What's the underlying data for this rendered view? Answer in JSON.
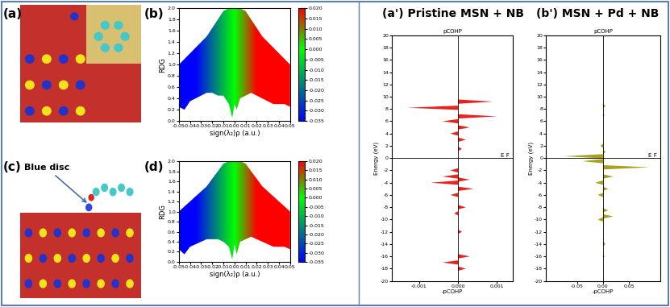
{
  "images": [
    {
      "panel": "(a)"
    },
    {
      "panel": "(c)",
      "annotation": "Blue disc"
    }
  ],
  "chart_data": [
    {
      "panel": "(b)",
      "type": "area",
      "x": [
        -0.05,
        -0.045,
        -0.04,
        -0.035,
        -0.03,
        -0.025,
        -0.02,
        -0.015,
        -0.01,
        -0.005,
        -0.002,
        0.0,
        0.002,
        0.005,
        0.01,
        0.015,
        0.02,
        0.025,
        0.03,
        0.035,
        0.04,
        0.045,
        0.05
      ],
      "upper": [
        1.0,
        1.1,
        1.2,
        1.3,
        1.4,
        1.5,
        1.65,
        1.8,
        1.95,
        2.0,
        2.0,
        2.0,
        2.0,
        2.0,
        1.95,
        1.8,
        1.65,
        1.5,
        1.4,
        1.3,
        1.2,
        1.1,
        1.0
      ],
      "lower": [
        0.25,
        0.2,
        0.35,
        0.4,
        0.45,
        0.5,
        0.5,
        0.45,
        0.45,
        0.3,
        0.05,
        0.3,
        0.2,
        0.4,
        0.45,
        0.5,
        0.45,
        0.4,
        0.35,
        0.3,
        0.3,
        0.3,
        0.25
      ],
      "xlabel": "sign(λ₂)ρ (a.u.)",
      "ylabel": "RDG",
      "xlim": [
        -0.05,
        0.05
      ],
      "ylim": [
        0,
        2.0
      ],
      "xticks": [
        -0.05,
        -0.04,
        -0.03,
        -0.02,
        -0.01,
        {
          "value": 0,
          "label": "0.00"
        },
        0.01,
        0.02,
        0.03,
        0.04,
        0.05
      ],
      "yticks": [
        {
          "value": 0,
          "label": "0.0"
        },
        0.2,
        0.4,
        0.6,
        0.8,
        {
          "value": 1,
          "label": "1.0"
        },
        1.2,
        1.4,
        1.6,
        1.8,
        {
          "value": 2,
          "label": "2.0"
        }
      ],
      "colorbar": {
        "lim": [
          -0.035,
          0.02
        ],
        "color_stops": [
          -0.035,
          0.0,
          0.02
        ],
        "colors": [
          "#0000ff",
          "#00ff00",
          "#ff0000"
        ],
        "ticks": [
          {
            "value": 0.02,
            "label": "0.020"
          },
          0.015,
          {
            "value": 0.01,
            "label": "0.010"
          },
          0.005,
          {
            "value": 0,
            "label": "0.000"
          },
          -0.005,
          {
            "value": -0.01,
            "label": "-0.010"
          },
          -0.015,
          {
            "value": -0.02,
            "label": "-0.020"
          },
          -0.025,
          {
            "value": -0.03,
            "label": "-0.030"
          },
          -0.035
        ]
      }
    },
    {
      "panel": "(d)",
      "type": "area",
      "x": [
        -0.05,
        -0.045,
        -0.04,
        -0.035,
        -0.03,
        -0.025,
        -0.02,
        -0.015,
        -0.01,
        -0.005,
        -0.002,
        0.0,
        0.002,
        0.005,
        0.01,
        0.015,
        0.02,
        0.025,
        0.03,
        0.035,
        0.04,
        0.045,
        0.05
      ],
      "upper": [
        1.0,
        1.1,
        1.2,
        1.3,
        1.4,
        1.5,
        1.65,
        1.8,
        1.95,
        2.0,
        2.0,
        2.0,
        2.0,
        2.0,
        1.95,
        1.8,
        1.65,
        1.5,
        1.4,
        1.3,
        1.2,
        1.1,
        1.0
      ],
      "lower": [
        0.25,
        0.15,
        0.3,
        0.35,
        0.4,
        0.45,
        0.45,
        0.45,
        0.4,
        0.3,
        0.05,
        0.35,
        0.15,
        0.4,
        0.45,
        0.5,
        0.45,
        0.4,
        0.35,
        0.3,
        0.3,
        0.3,
        0.25
      ],
      "xlabel": "sign(λ₂)ρ (a.u.)",
      "ylabel": "RDG",
      "xlim": [
        -0.05,
        0.05
      ],
      "ylim": [
        0,
        2.0
      ],
      "xticks": [
        -0.05,
        -0.04,
        -0.03,
        -0.02,
        -0.01,
        {
          "value": 0,
          "label": "0.00"
        },
        0.01,
        0.02,
        0.03,
        0.04,
        0.05
      ],
      "yticks": [
        {
          "value": 0,
          "label": "0.0"
        },
        0.2,
        0.4,
        0.6,
        0.8,
        {
          "value": 1,
          "label": "1.0"
        },
        1.2,
        1.4,
        1.6,
        1.8,
        {
          "value": 2,
          "label": "2.0"
        }
      ],
      "colorbar": {
        "lim": [
          -0.035,
          0.02
        ],
        "color_stops": [
          -0.035,
          0.0,
          0.02
        ],
        "colors": [
          "#0000ff",
          "#00ff00",
          "#ff0000"
        ],
        "ticks": [
          {
            "value": 0.02,
            "label": "0.020"
          },
          0.015,
          {
            "value": 0.01,
            "label": "0.010"
          },
          0.005,
          {
            "value": 0,
            "label": "0.000"
          },
          -0.005,
          {
            "value": -0.01,
            "label": "-0.010"
          },
          -0.015,
          {
            "value": -0.02,
            "label": "-0.020"
          },
          -0.025,
          {
            "value": -0.03,
            "label": "-0.030"
          },
          -0.035
        ]
      }
    },
    {
      "panel": "(a')",
      "type": "bar",
      "orientation": "horizontal",
      "heading": "Pristine MSN + NB",
      "title": "pCOHP",
      "xlabel": "-pCOHP",
      "ylabel": "Energy (eV)",
      "reference_label": "E_F",
      "reference_value": 0,
      "x_reference": 0,
      "color": "#e8231e",
      "y": [
        9.2,
        8.2,
        6.8,
        6.0,
        5.0,
        4.0,
        3.0,
        1.5,
        -2.0,
        -3.0,
        -3.5,
        -4.0,
        -5.0,
        -6.0,
        -8.0,
        -9.0,
        -12.0,
        -16.0,
        -17.0,
        -18.0
      ],
      "values": [
        0.0009,
        -0.0013,
        0.001,
        -0.0004,
        0.0003,
        -0.0002,
        0.0002,
        0.0001,
        -0.0002,
        -0.0004,
        0.0003,
        -0.0007,
        0.0004,
        -0.0002,
        0.0002,
        -0.0001,
        0.0001,
        0.0003,
        -0.0004,
        0.0002
      ],
      "xlim": [
        -0.0017,
        0.0014
      ],
      "ylim": [
        -20,
        20
      ],
      "xticks": [
        -0.001,
        {
          "value": 0,
          "label": "0.000"
        },
        0.001
      ],
      "yticks": [
        -20,
        -18,
        -16,
        -14,
        -12,
        -10,
        -8,
        -6,
        -4,
        -2,
        0,
        2,
        4,
        6,
        8,
        10,
        12,
        14,
        16,
        18,
        20
      ]
    },
    {
      "panel": "(b')",
      "type": "bar",
      "orientation": "horizontal",
      "heading": "MSN + Pd + NB",
      "title": "pCOHP",
      "xlabel": "-pCOHP",
      "ylabel": "Energy (eV)",
      "reference_label": "E_F",
      "reference_value": 0,
      "x_reference": 0,
      "color": "#a8a020",
      "y": [
        8.5,
        7.0,
        2.0,
        1.0,
        0.3,
        -0.5,
        -1.5,
        -3.0,
        -4.0,
        -5.0,
        -6.0,
        -8.5,
        -9.5,
        -10.0,
        -14.0,
        -16.0
      ],
      "values": [
        0.005,
        0.003,
        -0.005,
        0.005,
        -0.075,
        -0.04,
        0.09,
        0.02,
        -0.015,
        0.01,
        -0.01,
        0.01,
        0.02,
        -0.01,
        0.005,
        0.003
      ],
      "xlim": [
        -0.11,
        0.11
      ],
      "ylim": [
        -20,
        20
      ],
      "xticks": [
        -0.05,
        {
          "value": 0,
          "label": "0.00"
        },
        0.05
      ],
      "yticks": [
        -20,
        -18,
        -16,
        -14,
        -12,
        -10,
        -8,
        -6,
        -4,
        -2,
        0,
        2,
        4,
        6,
        8,
        10,
        12,
        14,
        16,
        18,
        20
      ]
    }
  ]
}
